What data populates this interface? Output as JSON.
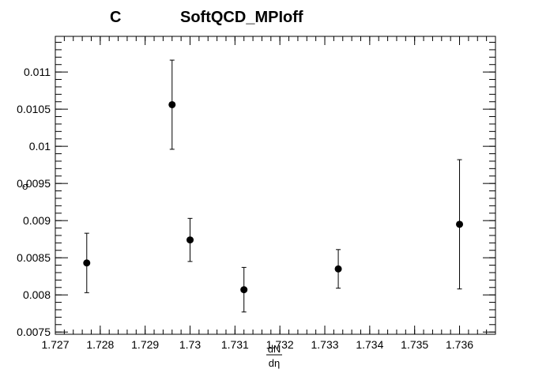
{
  "chart_data": {
    "type": "scatter",
    "panel_label": "C",
    "title": "SoftQCD_MPIoff",
    "xlabel_numerator": "dN",
    "xlabel_denominator": "dη",
    "ylabel": "σ",
    "xlim": [
      1.727,
      1.7368
    ],
    "ylim": [
      0.00747,
      0.01148
    ],
    "x_ticks": [
      "1.727",
      "1.728",
      "1.729",
      "1.73",
      "1.731",
      "1.732",
      "1.733",
      "1.734",
      "1.735",
      "1.736"
    ],
    "y_ticks": [
      "0.0075",
      "0.008",
      "0.0085",
      "0.009",
      "0.0095",
      "0.01",
      "0.0105",
      "0.011"
    ],
    "grid": false,
    "marker_color": "#000000",
    "points": [
      {
        "x": 1.7277,
        "y": 0.00843,
        "yerr": 0.0004
      },
      {
        "x": 1.7296,
        "y": 0.01056,
        "yerr": 0.0006
      },
      {
        "x": 1.73,
        "y": 0.00874,
        "yerr": 0.00029
      },
      {
        "x": 1.7312,
        "y": 0.00807,
        "yerr": 0.0003
      },
      {
        "x": 1.7333,
        "y": 0.00835,
        "yerr": 0.00026
      },
      {
        "x": 1.736,
        "y": 0.00895,
        "yerr": 0.00087
      }
    ]
  }
}
